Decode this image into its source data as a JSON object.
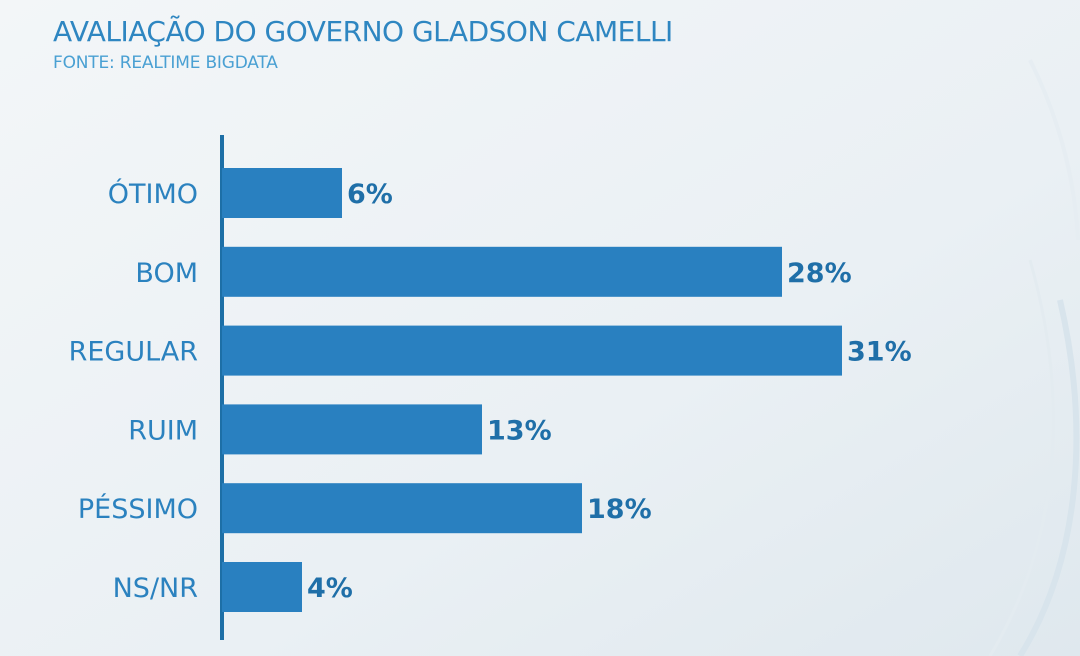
{
  "chart_data": {
    "type": "bar",
    "orientation": "horizontal",
    "title": "AVALIAÇÃO DO GOVERNO GLADSON CAMELLI",
    "subtitle": "FONTE: REALTIME BIGDATA",
    "categories": [
      "ÓTIMO",
      "BOM",
      "REGULAR",
      "RUIM",
      "PÉSSIMO",
      "NS/NR"
    ],
    "values": [
      6,
      28,
      31,
      13,
      18,
      4
    ],
    "value_labels": [
      "6%",
      "28%",
      "31%",
      "13%",
      "18%",
      "4%"
    ],
    "xlim": [
      0,
      31
    ],
    "grid": false,
    "legend": "none",
    "bar_color": "#2980c0",
    "axis_color": "#1d6fa6"
  }
}
